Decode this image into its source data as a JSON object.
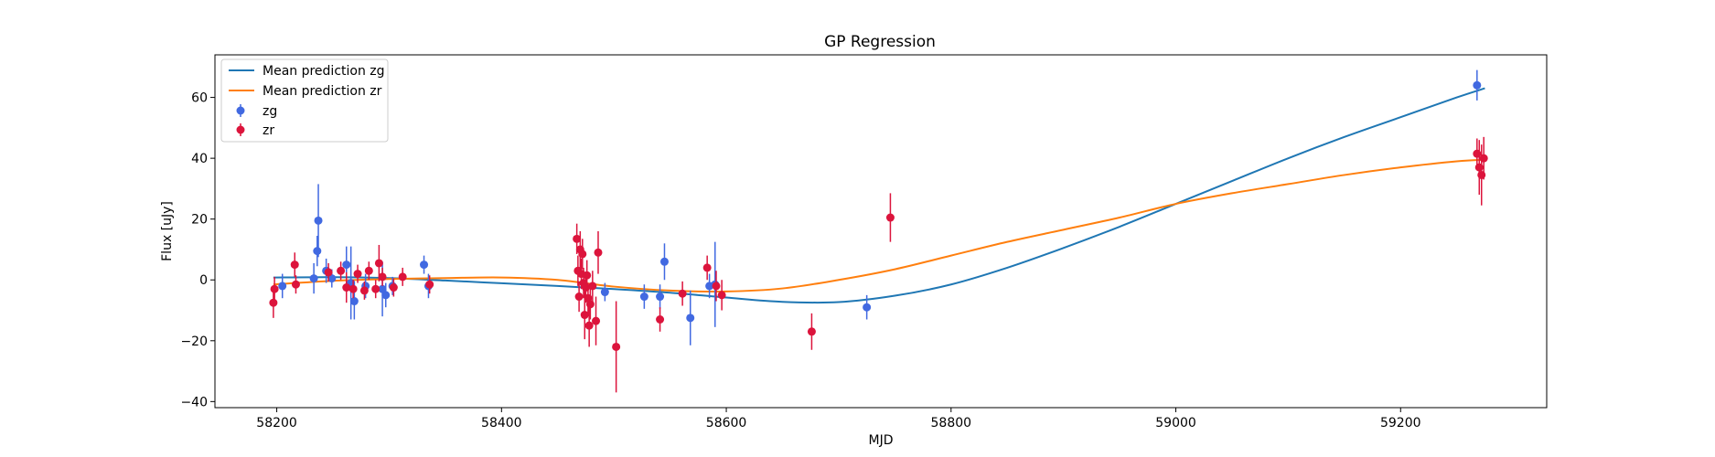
{
  "chart_data": {
    "type": "scatter",
    "title": "GP Regression",
    "xlabel": "MJD",
    "ylabel": "Flux [uJy]",
    "xlim": [
      58145,
      59330
    ],
    "ylim": [
      -42,
      74
    ],
    "xticks": [
      58200,
      58400,
      58600,
      58800,
      59000,
      59200
    ],
    "yticks": [
      -40,
      -20,
      0,
      20,
      40,
      60
    ],
    "grid": false,
    "legend": "top-left",
    "lines": [
      {
        "name": "Mean prediction zg",
        "color": "#1f77b4",
        "x": [
          58197,
          58250,
          58300,
          58350,
          58400,
          58450,
          58500,
          58550,
          58600,
          58650,
          58700,
          58750,
          58800,
          58850,
          58900,
          58950,
          59000,
          59050,
          59100,
          59150,
          59200,
          59250,
          59275
        ],
        "y": [
          0.8,
          0.9,
          0.6,
          -0.2,
          -1.1,
          -2.0,
          -3.0,
          -4.2,
          -5.8,
          -7.2,
          -7.3,
          -5.2,
          -1.5,
          4.0,
          10.5,
          17.5,
          25.0,
          32.5,
          40.0,
          47.0,
          53.5,
          60.0,
          63.0
        ]
      },
      {
        "name": "Mean prediction zr",
        "color": "#ff7f0e",
        "x": [
          58197,
          58250,
          58300,
          58350,
          58400,
          58450,
          58500,
          58550,
          58600,
          58650,
          58700,
          58750,
          58800,
          58850,
          58900,
          58950,
          59000,
          59050,
          59100,
          59150,
          59200,
          59250,
          59275
        ],
        "y": [
          -1.5,
          -0.3,
          0.3,
          0.6,
          0.8,
          0.0,
          -2.2,
          -3.5,
          -3.8,
          -2.8,
          0.0,
          3.5,
          8.0,
          12.5,
          16.5,
          20.5,
          25.0,
          28.5,
          31.5,
          34.5,
          37.0,
          39.0,
          39.5
        ]
      }
    ],
    "series": [
      {
        "name": "zg",
        "color": "#4169e1",
        "points": [
          {
            "x": 58205,
            "y": -2.0,
            "err": 4
          },
          {
            "x": 58233,
            "y": 0.5,
            "err": 5
          },
          {
            "x": 58236,
            "y": 9.5,
            "err": 5
          },
          {
            "x": 58237,
            "y": 19.5,
            "err": 12
          },
          {
            "x": 58244,
            "y": 3.0,
            "err": 4
          },
          {
            "x": 58249,
            "y": 0.5,
            "err": 3
          },
          {
            "x": 58262,
            "y": 5.0,
            "err": 6
          },
          {
            "x": 58266,
            "y": -1.0,
            "err": 12
          },
          {
            "x": 58269,
            "y": -7.0,
            "err": 6
          },
          {
            "x": 58279,
            "y": -2.0,
            "err": 4
          },
          {
            "x": 58294,
            "y": -3.0,
            "err": 9
          },
          {
            "x": 58297,
            "y": -5.0,
            "err": 4
          },
          {
            "x": 58303,
            "y": -2.0,
            "err": 3
          },
          {
            "x": 58331,
            "y": 5.0,
            "err": 3
          },
          {
            "x": 58335,
            "y": -2.0,
            "err": 4
          },
          {
            "x": 58492,
            "y": -4.0,
            "err": 3
          },
          {
            "x": 58527,
            "y": -5.5,
            "err": 4
          },
          {
            "x": 58541,
            "y": -5.5,
            "err": 4
          },
          {
            "x": 58545,
            "y": 6.0,
            "err": 6
          },
          {
            "x": 58568,
            "y": -12.5,
            "err": 9
          },
          {
            "x": 58585,
            "y": -2.0,
            "err": 4
          },
          {
            "x": 58590,
            "y": -1.5,
            "err": 14
          },
          {
            "x": 58725,
            "y": -9.0,
            "err": 4
          },
          {
            "x": 59268,
            "y": 64.0,
            "err": 5
          }
        ]
      },
      {
        "name": "zr",
        "color": "#dc143c",
        "points": [
          {
            "x": 58197,
            "y": -7.5,
            "err": 5
          },
          {
            "x": 58198,
            "y": -3.0,
            "err": 4
          },
          {
            "x": 58216,
            "y": 5.0,
            "err": 4
          },
          {
            "x": 58217,
            "y": -1.5,
            "err": 3
          },
          {
            "x": 58246,
            "y": 2.5,
            "err": 3
          },
          {
            "x": 58257,
            "y": 3.0,
            "err": 3
          },
          {
            "x": 58262,
            "y": -2.5,
            "err": 5
          },
          {
            "x": 58268,
            "y": -3.0,
            "err": 3
          },
          {
            "x": 58272,
            "y": 2.0,
            "err": 3
          },
          {
            "x": 58278,
            "y": -3.5,
            "err": 3
          },
          {
            "x": 58282,
            "y": 3.0,
            "err": 3
          },
          {
            "x": 58288,
            "y": -3.0,
            "err": 3
          },
          {
            "x": 58291,
            "y": 5.5,
            "err": 6
          },
          {
            "x": 58294,
            "y": 1.0,
            "err": 3
          },
          {
            "x": 58304,
            "y": -2.5,
            "err": 3
          },
          {
            "x": 58312,
            "y": 1.0,
            "err": 3
          },
          {
            "x": 58336,
            "y": -1.5,
            "err": 3
          },
          {
            "x": 58467,
            "y": 13.5,
            "err": 5
          },
          {
            "x": 58468,
            "y": 3.0,
            "err": 5
          },
          {
            "x": 58469,
            "y": -5.5,
            "err": 5
          },
          {
            "x": 58470,
            "y": 10.0,
            "err": 6
          },
          {
            "x": 58471,
            "y": 2.0,
            "err": 5
          },
          {
            "x": 58472,
            "y": 8.5,
            "err": 5
          },
          {
            "x": 58473,
            "y": -1.0,
            "err": 5
          },
          {
            "x": 58474,
            "y": -11.5,
            "err": 8
          },
          {
            "x": 58475,
            "y": -2.5,
            "err": 5
          },
          {
            "x": 58476,
            "y": 1.5,
            "err": 5
          },
          {
            "x": 58477,
            "y": -6.0,
            "err": 5
          },
          {
            "x": 58478,
            "y": -15.0,
            "err": 7
          },
          {
            "x": 58479,
            "y": -8.0,
            "err": 5
          },
          {
            "x": 58481,
            "y": -2.0,
            "err": 5
          },
          {
            "x": 58484,
            "y": -13.5,
            "err": 8
          },
          {
            "x": 58486,
            "y": 9.0,
            "err": 7
          },
          {
            "x": 58502,
            "y": -22.0,
            "err": 15
          },
          {
            "x": 58541,
            "y": -13.0,
            "err": 4
          },
          {
            "x": 58561,
            "y": -4.5,
            "err": 4
          },
          {
            "x": 58583,
            "y": 4.0,
            "err": 4
          },
          {
            "x": 58591,
            "y": -2.0,
            "err": 5
          },
          {
            "x": 58596,
            "y": -5.0,
            "err": 5
          },
          {
            "x": 58676,
            "y": -17.0,
            "err": 6
          },
          {
            "x": 58746,
            "y": 20.5,
            "err": 8
          },
          {
            "x": 59268,
            "y": 41.5,
            "err": 5
          },
          {
            "x": 59270,
            "y": 37.0,
            "err": 9
          },
          {
            "x": 59272,
            "y": 34.5,
            "err": 10
          },
          {
            "x": 59274,
            "y": 40.0,
            "err": 7
          }
        ]
      }
    ]
  }
}
